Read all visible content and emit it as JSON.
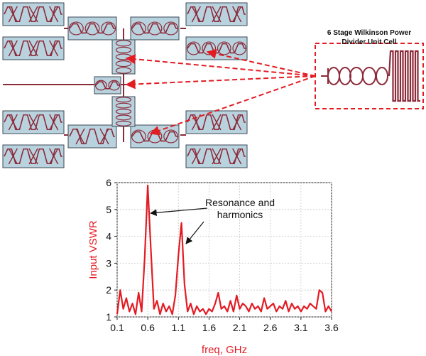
{
  "inset": {
    "title_line1": "6 Stage Wilkinson Power",
    "title_line2": "Divider Unit Cell"
  },
  "colors": {
    "module_fill": "#b9d3de",
    "module_stroke": "#3b4a55",
    "trace": "#8c2a3a",
    "arrow": "#e31b23",
    "plot_line": "#e31b23",
    "axis_label": "#e31b23"
  },
  "chart_data": {
    "type": "line",
    "xlabel": "freq, GHz",
    "ylabel": "Input VSWR",
    "xlim": [
      0.1,
      3.6
    ],
    "ylim": [
      1,
      6
    ],
    "xticks": [
      "0.1",
      "0.6",
      "1.1",
      "1.6",
      "2.1",
      "2.6",
      "3.1",
      "3.6"
    ],
    "yticks": [
      "1",
      "2",
      "3",
      "4",
      "5",
      "6"
    ],
    "grid": true,
    "annotation": {
      "line1": "Resonance and",
      "line2": "harmonics"
    },
    "series": [
      {
        "x": [
          0.1,
          0.15,
          0.2,
          0.25,
          0.3,
          0.35,
          0.4,
          0.45,
          0.5,
          0.55,
          0.6,
          0.65,
          0.7,
          0.75,
          0.8,
          0.85,
          0.9,
          0.95,
          1.0,
          1.05,
          1.1,
          1.15,
          1.2,
          1.25,
          1.3,
          1.35,
          1.4,
          1.45,
          1.5,
          1.55,
          1.6,
          1.65,
          1.7,
          1.75,
          1.8,
          1.85,
          1.9,
          1.95,
          2.0,
          2.05,
          2.1,
          2.15,
          2.2,
          2.25,
          2.3,
          2.35,
          2.4,
          2.45,
          2.5,
          2.55,
          2.6,
          2.65,
          2.7,
          2.75,
          2.8,
          2.85,
          2.9,
          2.95,
          3.0,
          3.05,
          3.1,
          3.15,
          3.2,
          3.25,
          3.3,
          3.35,
          3.4,
          3.45,
          3.5,
          3.55,
          3.6
        ],
        "y": [
          1.1,
          2.0,
          1.3,
          1.7,
          1.2,
          1.5,
          1.1,
          1.9,
          1.2,
          3.2,
          5.9,
          3.5,
          1.3,
          1.6,
          1.1,
          1.5,
          1.2,
          1.4,
          1.1,
          1.8,
          3.3,
          4.5,
          2.2,
          1.2,
          1.5,
          1.1,
          1.4,
          1.2,
          1.3,
          1.1,
          1.3,
          1.2,
          1.5,
          1.9,
          1.3,
          1.4,
          1.2,
          1.6,
          1.2,
          1.8,
          1.3,
          1.5,
          1.4,
          1.2,
          1.5,
          1.3,
          1.4,
          1.2,
          1.7,
          1.3,
          1.4,
          1.5,
          1.2,
          1.4,
          1.3,
          1.6,
          1.2,
          1.5,
          1.3,
          1.4,
          1.2,
          1.4,
          1.3,
          1.5,
          1.4,
          1.3,
          2.0,
          1.9,
          1.2,
          1.4,
          1.2
        ]
      }
    ]
  }
}
